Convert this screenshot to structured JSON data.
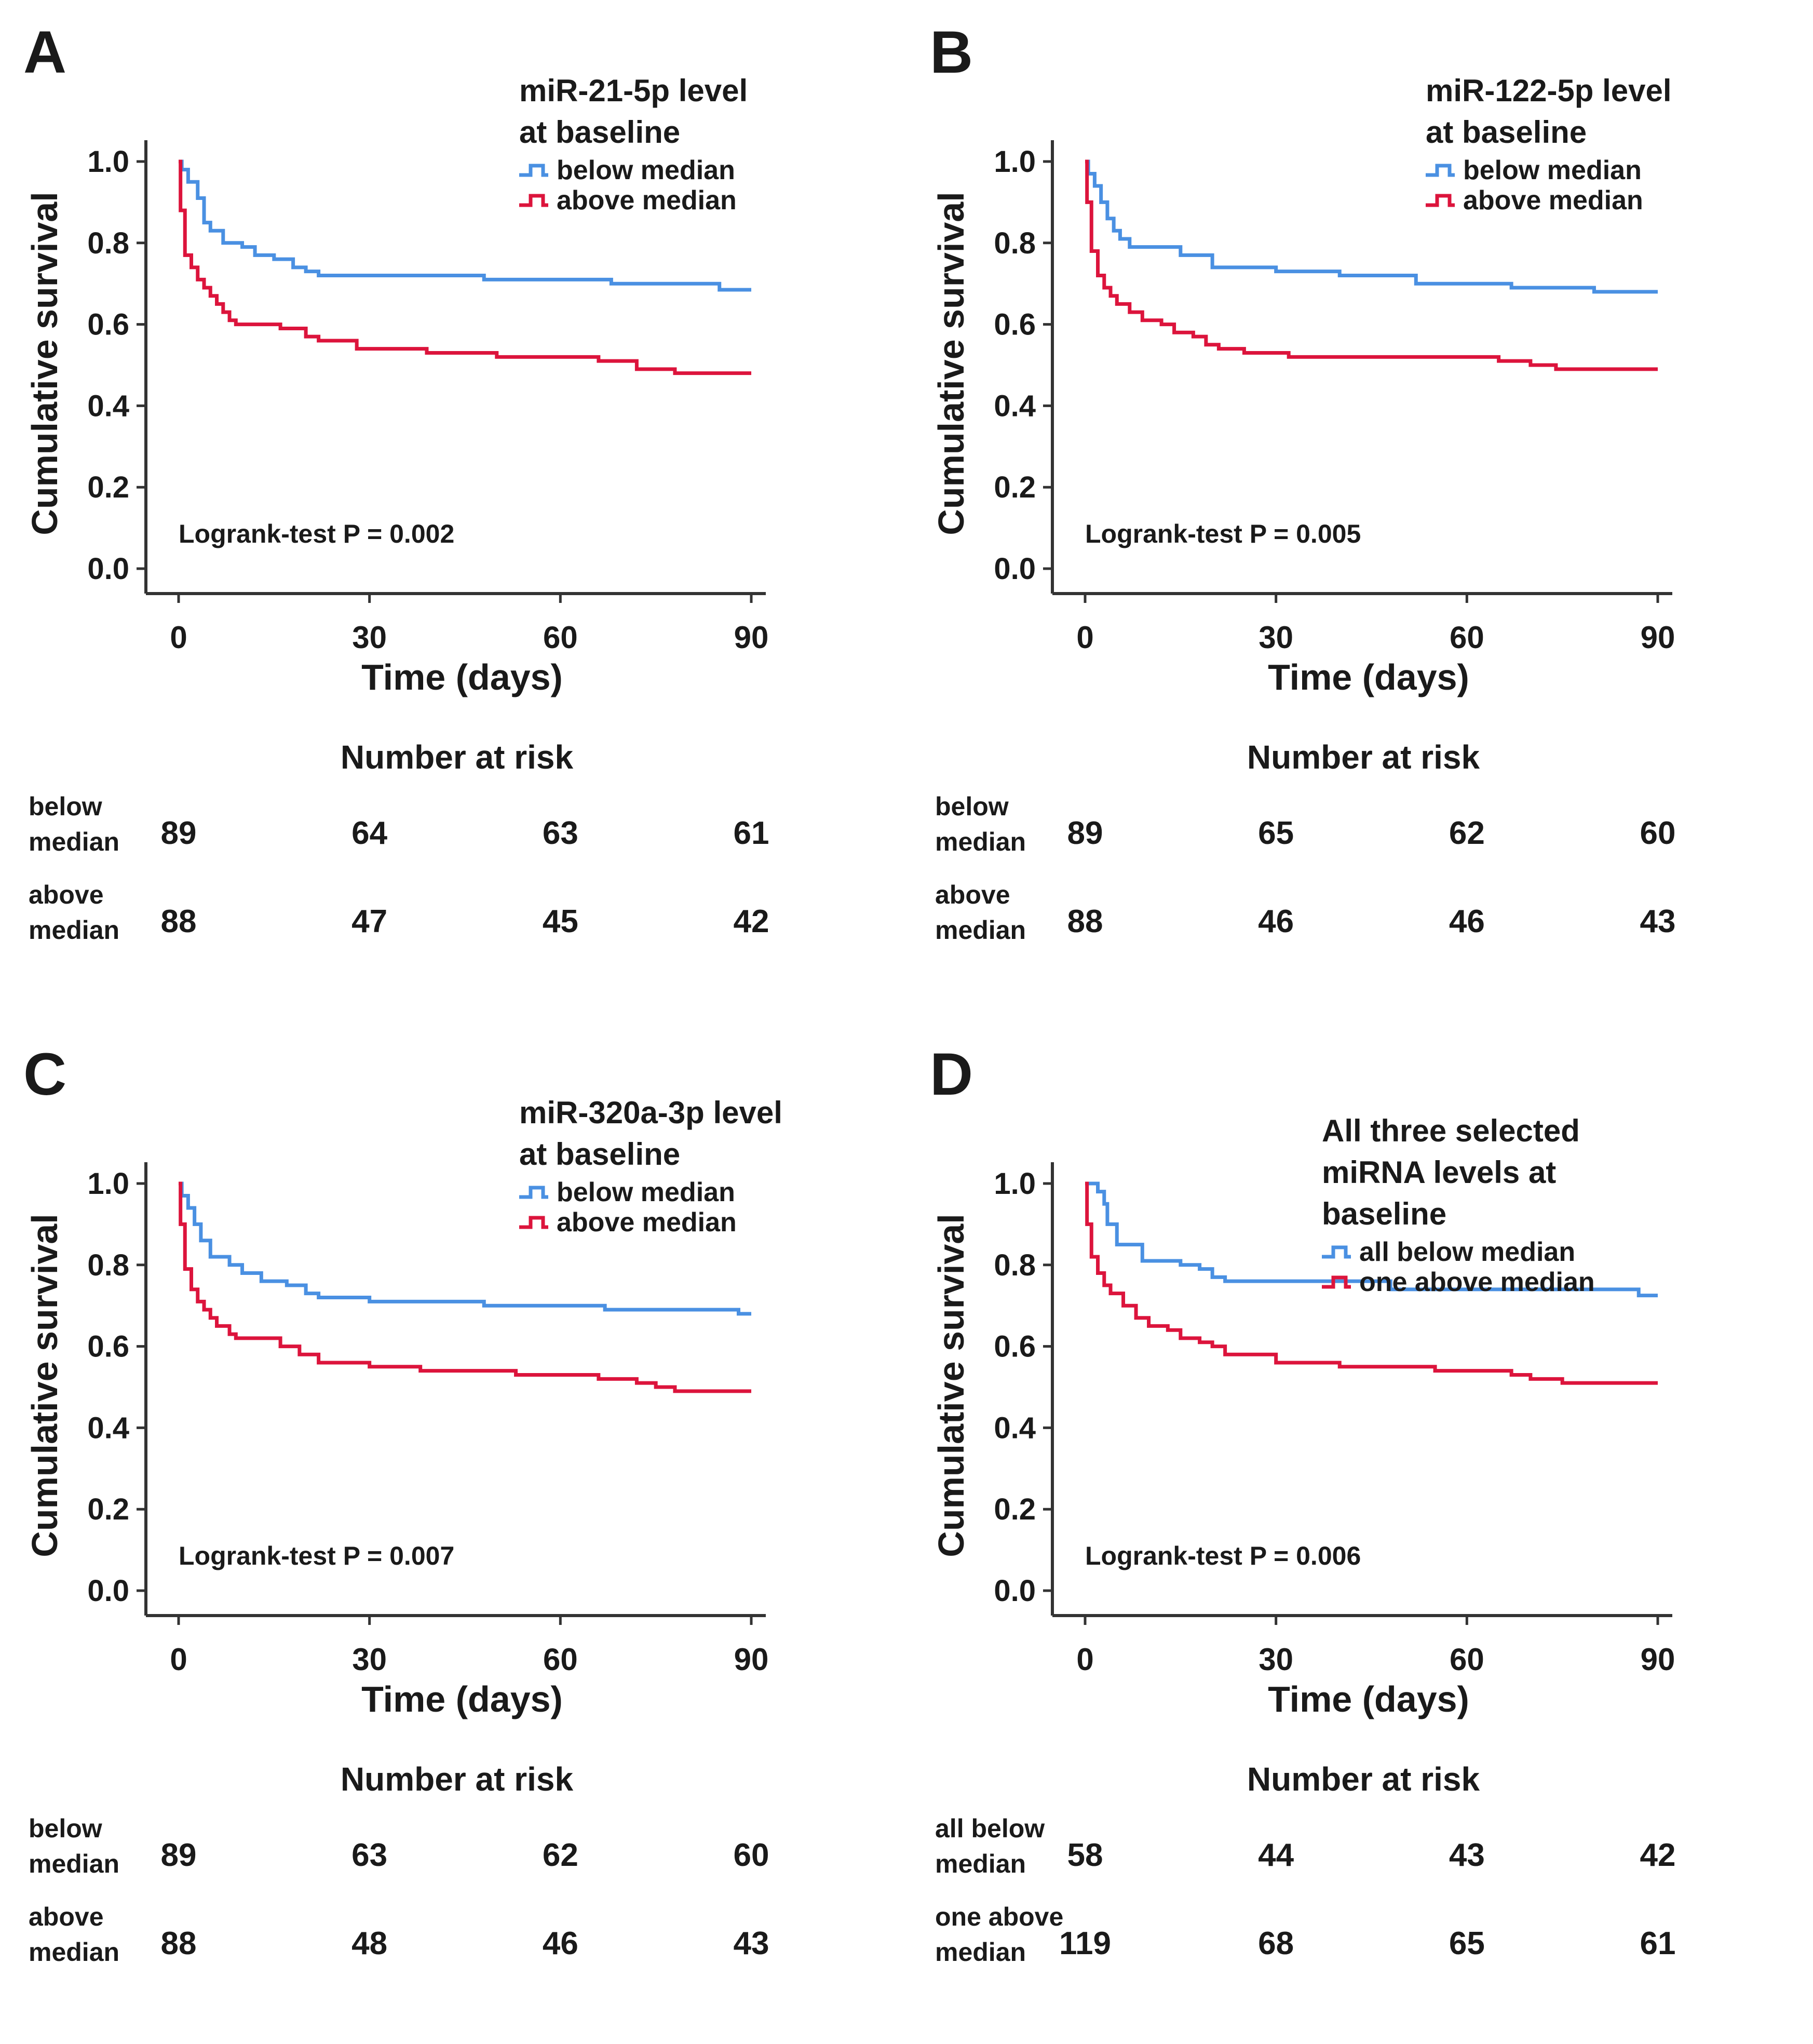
{
  "colors": {
    "below": "#4a90e2",
    "above": "#dc143c",
    "axis": "#333333"
  },
  "chart_data": [
    {
      "type": "line",
      "panel": "A",
      "legend_title": [
        "miR-21-5p level",
        "at baseline"
      ],
      "ylabel": "Cumulative survival",
      "xlabel": "Time (days)",
      "xlim": [
        0,
        90
      ],
      "ylim": [
        0,
        1
      ],
      "xticks": [
        "0",
        "30",
        "60",
        "90"
      ],
      "yticks": [
        "0.0",
        "0.2",
        "0.4",
        "0.6",
        "0.8",
        "1.0"
      ],
      "annotation": "Logrank-test P = 0.002",
      "series": [
        {
          "name": "below median",
          "color": "#4a90e2",
          "steps": [
            [
              0,
              1.0
            ],
            [
              0.5,
              0.98
            ],
            [
              1.5,
              0.95
            ],
            [
              3,
              0.91
            ],
            [
              4,
              0.85
            ],
            [
              5,
              0.83
            ],
            [
              7,
              0.8
            ],
            [
              10,
              0.79
            ],
            [
              12,
              0.77
            ],
            [
              15,
              0.76
            ],
            [
              18,
              0.74
            ],
            [
              20,
              0.73
            ],
            [
              22,
              0.72
            ],
            [
              48,
              0.71
            ],
            [
              68,
              0.7
            ],
            [
              85,
              0.685
            ],
            [
              90,
              0.685
            ]
          ]
        },
        {
          "name": "above median",
          "color": "#dc143c",
          "steps": [
            [
              0,
              1.0
            ],
            [
              0.3,
              0.88
            ],
            [
              1,
              0.77
            ],
            [
              2,
              0.74
            ],
            [
              3,
              0.71
            ],
            [
              4,
              0.69
            ],
            [
              5,
              0.67
            ],
            [
              6,
              0.65
            ],
            [
              7,
              0.63
            ],
            [
              8,
              0.61
            ],
            [
              9,
              0.6
            ],
            [
              16,
              0.59
            ],
            [
              20,
              0.57
            ],
            [
              22,
              0.56
            ],
            [
              28,
              0.54
            ],
            [
              39,
              0.53
            ],
            [
              50,
              0.52
            ],
            [
              66,
              0.51
            ],
            [
              72,
              0.49
            ],
            [
              78,
              0.48
            ],
            [
              90,
              0.48
            ]
          ]
        }
      ],
      "risk_title": "Number at risk",
      "risk_rows": [
        {
          "label": [
            "below",
            "median"
          ],
          "values": [
            "89",
            "64",
            "63",
            "61"
          ]
        },
        {
          "label": [
            "above",
            "median"
          ],
          "values": [
            "88",
            "47",
            "45",
            "42"
          ]
        }
      ]
    },
    {
      "type": "line",
      "panel": "B",
      "legend_title": [
        "miR-122-5p level",
        "at baseline"
      ],
      "ylabel": "Cumulative survival",
      "xlabel": "Time (days)",
      "xlim": [
        0,
        90
      ],
      "ylim": [
        0,
        1
      ],
      "xticks": [
        "0",
        "30",
        "60",
        "90"
      ],
      "yticks": [
        "0.0",
        "0.2",
        "0.4",
        "0.6",
        "0.8",
        "1.0"
      ],
      "annotation": "Logrank-test P = 0.005",
      "series": [
        {
          "name": "below median",
          "color": "#4a90e2",
          "steps": [
            [
              0,
              1.0
            ],
            [
              0.5,
              0.97
            ],
            [
              1.5,
              0.94
            ],
            [
              2.5,
              0.9
            ],
            [
              3.5,
              0.86
            ],
            [
              4.5,
              0.83
            ],
            [
              5.5,
              0.81
            ],
            [
              7,
              0.79
            ],
            [
              15,
              0.77
            ],
            [
              20,
              0.74
            ],
            [
              30,
              0.73
            ],
            [
              40,
              0.72
            ],
            [
              52,
              0.7
            ],
            [
              67,
              0.69
            ],
            [
              80,
              0.68
            ],
            [
              90,
              0.68
            ]
          ]
        },
        {
          "name": "above median",
          "color": "#dc143c",
          "steps": [
            [
              0,
              1.0
            ],
            [
              0.3,
              0.9
            ],
            [
              1,
              0.78
            ],
            [
              2,
              0.72
            ],
            [
              3,
              0.69
            ],
            [
              4,
              0.67
            ],
            [
              5,
              0.65
            ],
            [
              7,
              0.63
            ],
            [
              9,
              0.61
            ],
            [
              12,
              0.6
            ],
            [
              14,
              0.58
            ],
            [
              17,
              0.57
            ],
            [
              19,
              0.55
            ],
            [
              21,
              0.54
            ],
            [
              25,
              0.53
            ],
            [
              32,
              0.52
            ],
            [
              65,
              0.51
            ],
            [
              70,
              0.5
            ],
            [
              74,
              0.49
            ],
            [
              90,
              0.49
            ]
          ]
        }
      ],
      "risk_title": "Number at risk",
      "risk_rows": [
        {
          "label": [
            "below",
            "median"
          ],
          "values": [
            "89",
            "65",
            "62",
            "60"
          ]
        },
        {
          "label": [
            "above",
            "median"
          ],
          "values": [
            "88",
            "46",
            "46",
            "43"
          ]
        }
      ]
    },
    {
      "type": "line",
      "panel": "C",
      "legend_title": [
        "miR-320a-3p level",
        "at baseline"
      ],
      "ylabel": "Cumulative survival",
      "xlabel": "Time (days)",
      "xlim": [
        0,
        90
      ],
      "ylim": [
        0,
        1
      ],
      "xticks": [
        "0",
        "30",
        "60",
        "90"
      ],
      "yticks": [
        "0.0",
        "0.2",
        "0.4",
        "0.6",
        "0.8",
        "1.0"
      ],
      "annotation": "Logrank-test P = 0.007",
      "series": [
        {
          "name": "below median",
          "color": "#4a90e2",
          "steps": [
            [
              0,
              1.0
            ],
            [
              0.5,
              0.97
            ],
            [
              1.5,
              0.94
            ],
            [
              2.5,
              0.9
            ],
            [
              3.5,
              0.86
            ],
            [
              5,
              0.82
            ],
            [
              8,
              0.8
            ],
            [
              10,
              0.78
            ],
            [
              13,
              0.76
            ],
            [
              17,
              0.75
            ],
            [
              20,
              0.73
            ],
            [
              22,
              0.72
            ],
            [
              30,
              0.71
            ],
            [
              48,
              0.7
            ],
            [
              67,
              0.69
            ],
            [
              88,
              0.68
            ],
            [
              90,
              0.68
            ]
          ]
        },
        {
          "name": "above median",
          "color": "#dc143c",
          "steps": [
            [
              0,
              1.0
            ],
            [
              0.3,
              0.9
            ],
            [
              1,
              0.79
            ],
            [
              2,
              0.74
            ],
            [
              3,
              0.71
            ],
            [
              4,
              0.69
            ],
            [
              5,
              0.67
            ],
            [
              6,
              0.65
            ],
            [
              8,
              0.63
            ],
            [
              9,
              0.62
            ],
            [
              16,
              0.6
            ],
            [
              19,
              0.58
            ],
            [
              22,
              0.56
            ],
            [
              30,
              0.55
            ],
            [
              38,
              0.54
            ],
            [
              53,
              0.53
            ],
            [
              66,
              0.52
            ],
            [
              72,
              0.51
            ],
            [
              75,
              0.5
            ],
            [
              78,
              0.49
            ],
            [
              90,
              0.49
            ]
          ]
        }
      ],
      "risk_title": "Number at risk",
      "risk_rows": [
        {
          "label": [
            "below",
            "median"
          ],
          "values": [
            "89",
            "63",
            "62",
            "60"
          ]
        },
        {
          "label": [
            "above",
            "median"
          ],
          "values": [
            "88",
            "48",
            "46",
            "43"
          ]
        }
      ]
    },
    {
      "type": "line",
      "panel": "D",
      "legend_title": [
        "All three selected",
        "miRNA levels at",
        "baseline"
      ],
      "ylabel": "Cumulative survival",
      "xlabel": "Time (days)",
      "xlim": [
        0,
        90
      ],
      "ylim": [
        0,
        1
      ],
      "xticks": [
        "0",
        "30",
        "60",
        "90"
      ],
      "yticks": [
        "0.0",
        "0.2",
        "0.4",
        "0.6",
        "0.8",
        "1.0"
      ],
      "annotation": "Logrank-test P = 0.006",
      "series": [
        {
          "name": "all below median",
          "color": "#4a90e2",
          "steps": [
            [
              0,
              1.0
            ],
            [
              2,
              0.98
            ],
            [
              3,
              0.95
            ],
            [
              3.5,
              0.9
            ],
            [
              5,
              0.85
            ],
            [
              9,
              0.81
            ],
            [
              15,
              0.8
            ],
            [
              18,
              0.79
            ],
            [
              20,
              0.77
            ],
            [
              22,
              0.76
            ],
            [
              48,
              0.74
            ],
            [
              87,
              0.725
            ],
            [
              90,
              0.725
            ]
          ]
        },
        {
          "name": "one above median",
          "color": "#dc143c",
          "steps": [
            [
              0,
              1.0
            ],
            [
              0.3,
              0.9
            ],
            [
              1,
              0.82
            ],
            [
              2,
              0.78
            ],
            [
              3,
              0.75
            ],
            [
              4,
              0.73
            ],
            [
              6,
              0.7
            ],
            [
              8,
              0.67
            ],
            [
              10,
              0.65
            ],
            [
              13,
              0.64
            ],
            [
              15,
              0.62
            ],
            [
              18,
              0.61
            ],
            [
              20,
              0.6
            ],
            [
              22,
              0.58
            ],
            [
              30,
              0.56
            ],
            [
              40,
              0.55
            ],
            [
              55,
              0.54
            ],
            [
              67,
              0.53
            ],
            [
              70,
              0.52
            ],
            [
              75,
              0.51
            ],
            [
              90,
              0.51
            ]
          ]
        }
      ],
      "risk_title": "Number at risk",
      "risk_rows": [
        {
          "label": [
            "all below",
            "median"
          ],
          "values": [
            "58",
            "44",
            "43",
            "42"
          ]
        },
        {
          "label": [
            "one above",
            "median"
          ],
          "values": [
            "119",
            "68",
            "65",
            "61"
          ]
        }
      ]
    }
  ]
}
